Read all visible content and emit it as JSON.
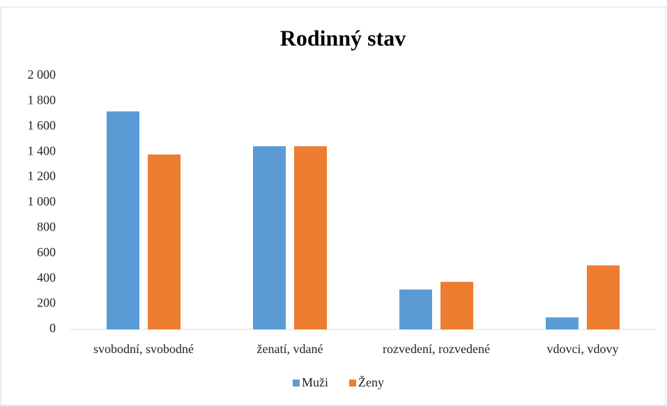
{
  "chart_data": {
    "type": "bar",
    "title": "Rodinný stav",
    "categories": [
      "svobodní, svobodné",
      "ženatí, vdané",
      "rozvedení, rozvedené",
      "vdovci, vdovy"
    ],
    "series": [
      {
        "name": "Muži",
        "color": "#5b9bd5",
        "values": [
          1720,
          1445,
          315,
          95
        ]
      },
      {
        "name": "Ženy",
        "color": "#ed7d31",
        "values": [
          1380,
          1445,
          375,
          505
        ]
      }
    ],
    "ylim": [
      0,
      2000
    ],
    "yticks": [
      0,
      200,
      400,
      600,
      800,
      {
        "value": 1000,
        "label": "1 000"
      },
      {
        "value": 1200,
        "label": "1 200"
      },
      {
        "value": 1400,
        "label": "1 400"
      },
      {
        "value": 1600,
        "label": "1 600"
      },
      {
        "value": 1800,
        "label": "1 800"
      },
      {
        "value": 2000,
        "label": "2 000"
      }
    ],
    "grid": false,
    "legend": "bottom"
  }
}
